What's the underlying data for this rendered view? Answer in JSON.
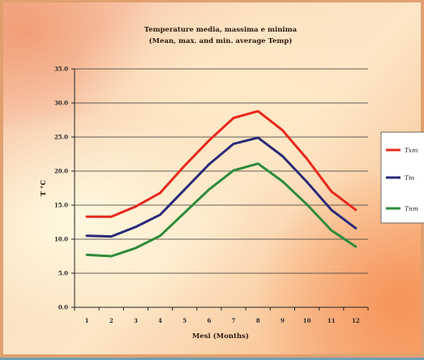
{
  "chart_data": {
    "type": "line",
    "title": "Temperature media, massima e minima",
    "subtitle": "(Mean, max. and min. average Temp)",
    "xlabel": "Mesi  (Months)",
    "ylabel": "T °C",
    "categories": [
      "1",
      "2",
      "3",
      "4",
      "5",
      "6",
      "7",
      "8",
      "9",
      "10",
      "11",
      "12"
    ],
    "yticks": [
      "0.0",
      "5.0",
      "10.0",
      "15.0",
      "20.0",
      "25.0",
      "30.0",
      "35.0"
    ],
    "ylim": [
      0,
      35
    ],
    "grid": true,
    "legend_position": "right",
    "series": [
      {
        "name": "Txm",
        "color": "#e8281e",
        "values": [
          13.3,
          13.3,
          14.8,
          16.8,
          20.8,
          24.5,
          27.8,
          28.8,
          26.0,
          21.8,
          17.0,
          14.3
        ]
      },
      {
        "name": "Tm",
        "color": "#2a2a7a",
        "values": [
          10.5,
          10.4,
          11.8,
          13.6,
          17.3,
          21.0,
          24.0,
          24.9,
          22.2,
          18.4,
          14.3,
          11.6
        ]
      },
      {
        "name": "Tnm",
        "color": "#2e8b3a",
        "values": [
          7.7,
          7.5,
          8.7,
          10.5,
          13.9,
          17.3,
          20.1,
          21.1,
          18.5,
          15.1,
          11.3,
          8.9
        ]
      }
    ]
  }
}
